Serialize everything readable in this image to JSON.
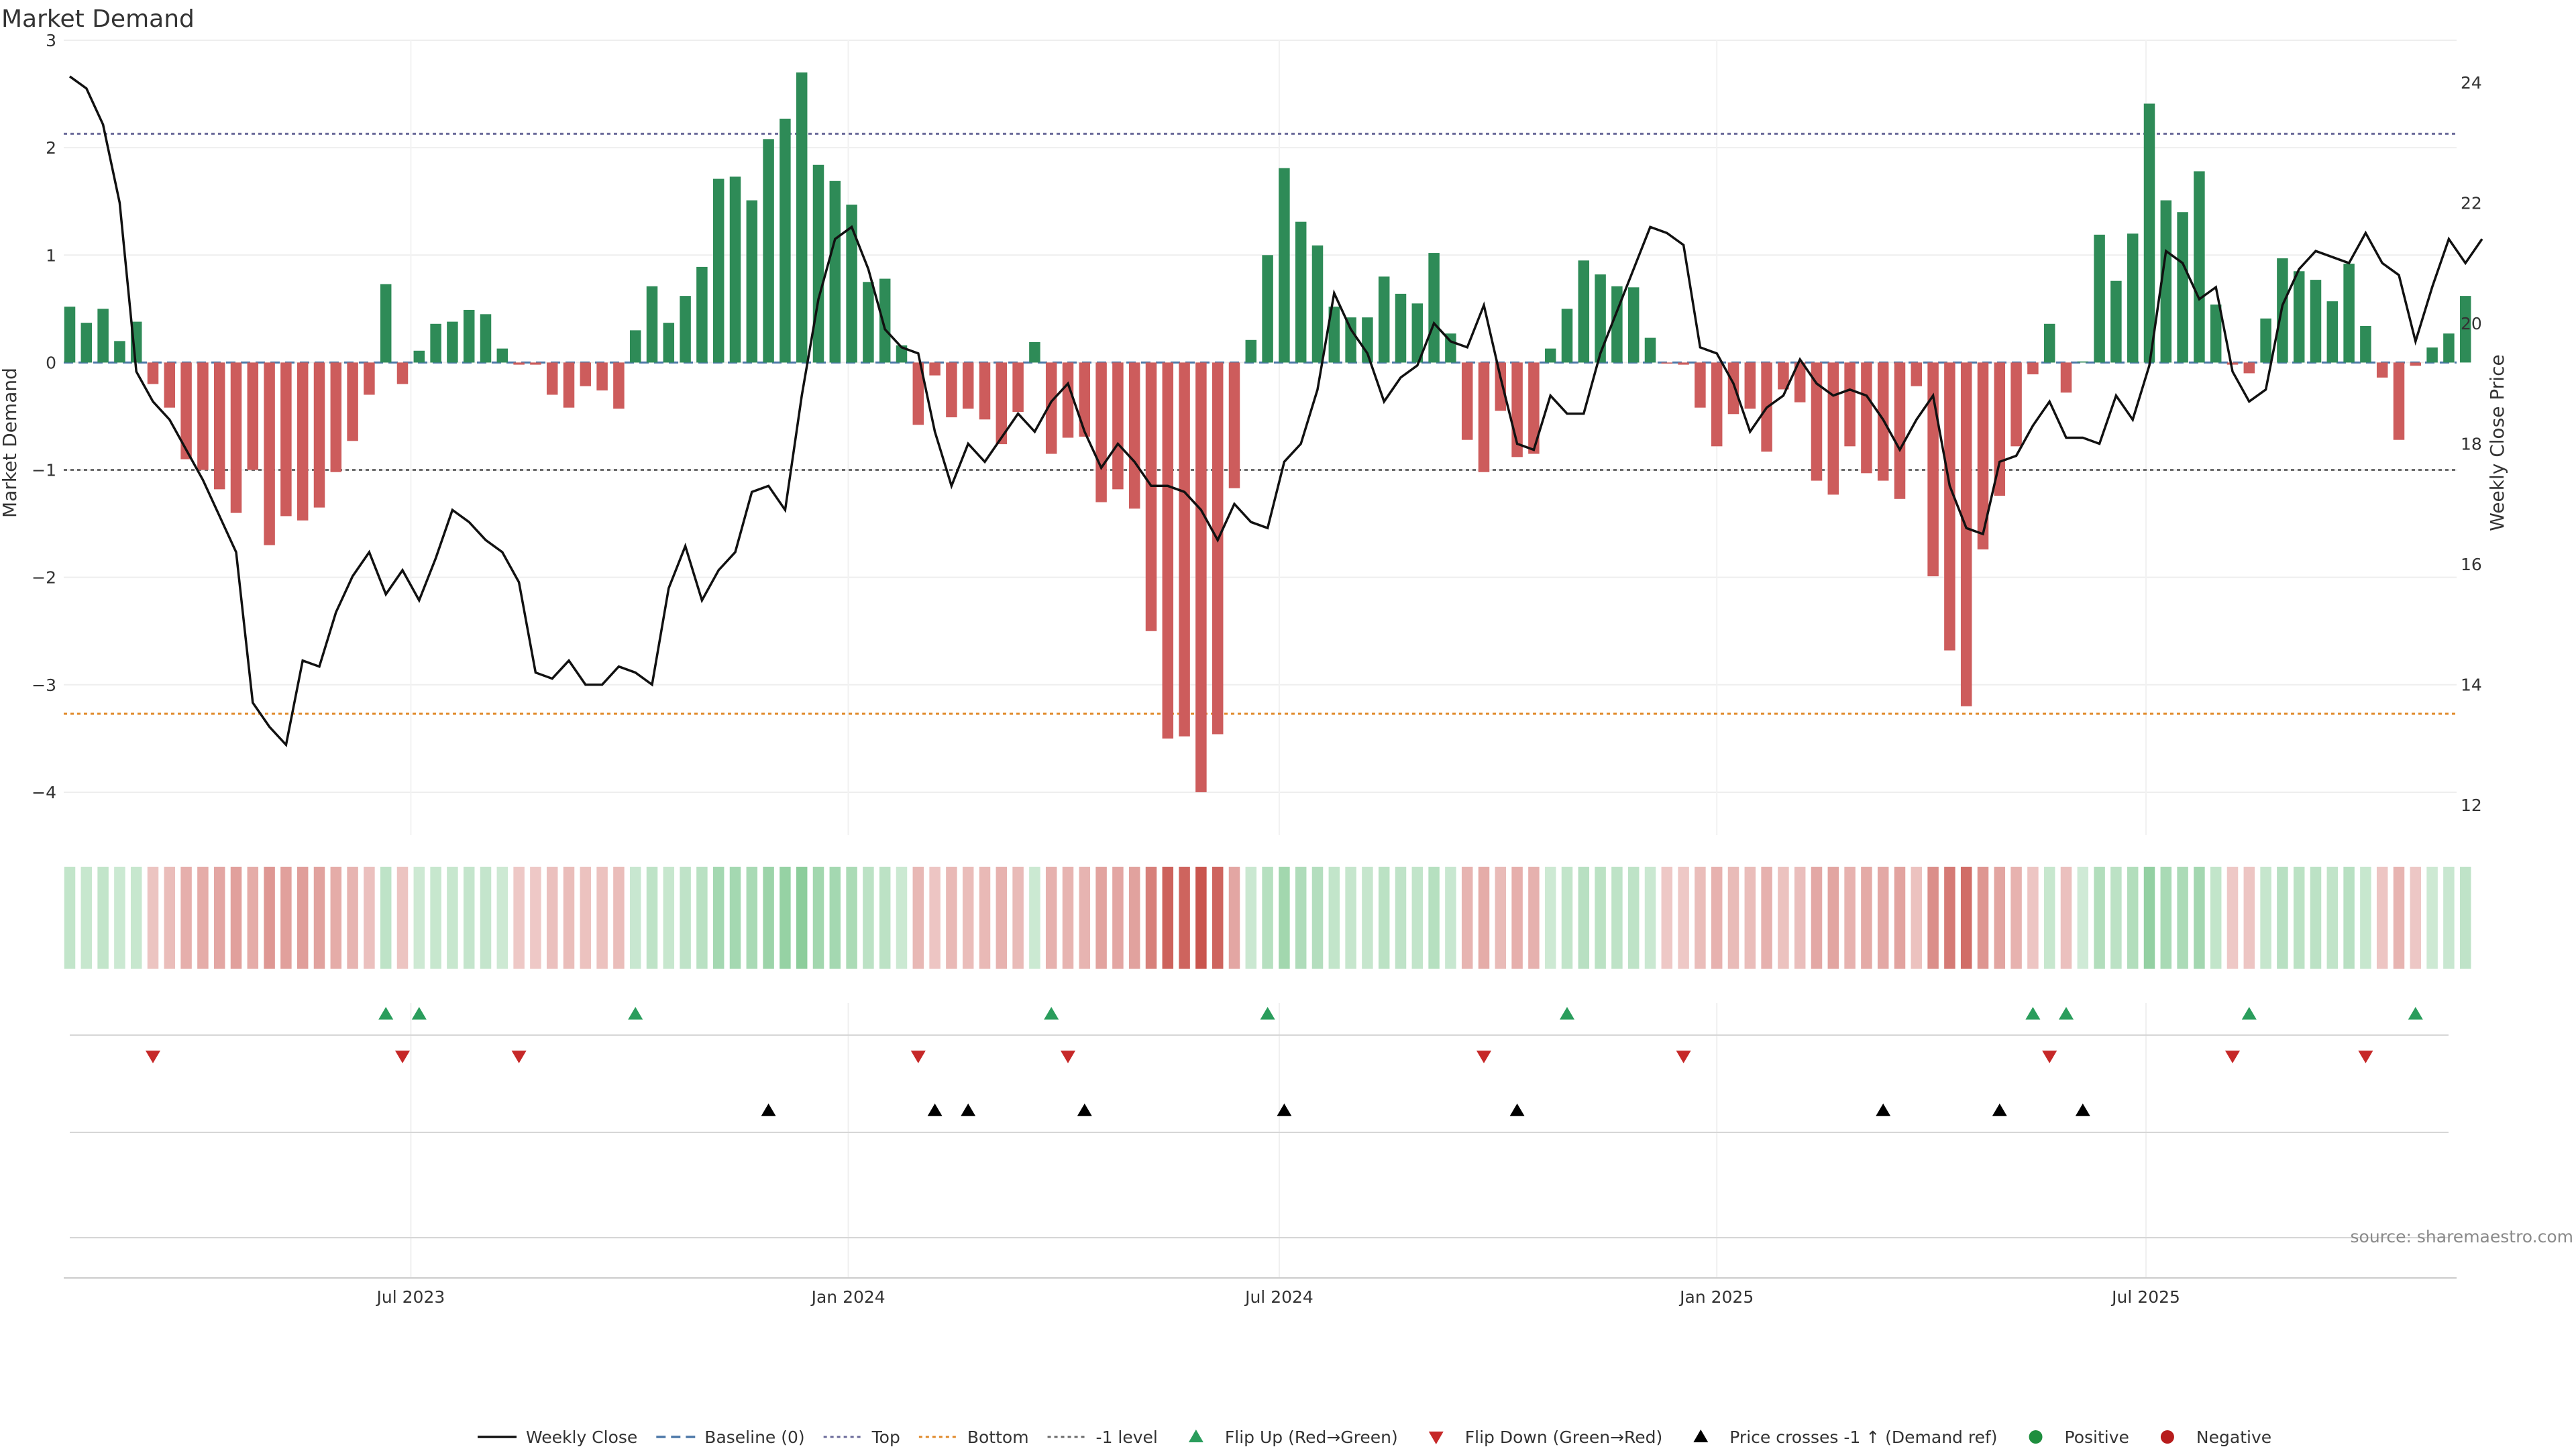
{
  "chart_data": {
    "type": "bar",
    "title": "Market Demand",
    "ylabel": "Market Demand",
    "y2label": "Weekly Close Price",
    "ylim": [
      -4.4,
      3.0
    ],
    "y2lim": [
      11.5,
      24.7
    ],
    "yticks": [
      3,
      2,
      1,
      0,
      -1,
      -2,
      -3,
      -4
    ],
    "y2ticks": [
      24,
      22,
      20,
      18,
      16,
      14,
      12
    ],
    "xticks": [
      {
        "label": "Jul 2023",
        "index": 20.5
      },
      {
        "label": "Jan 2024",
        "index": 46.8
      },
      {
        "label": "Jan 2024 grid",
        "index": 46.8,
        "hidden": true
      },
      {
        "label": "Jul 2024",
        "index": 72.7
      },
      {
        "label": "Jan 2025",
        "index": 99.0
      },
      {
        "label": "Jul 2025",
        "index": 124.8
      }
    ],
    "reference_lines": {
      "top": 2.13,
      "bottom": -3.27,
      "minus_one": -1.0,
      "baseline": 0
    },
    "demand": [
      0.52,
      0.37,
      0.5,
      0.2,
      0.38,
      -0.2,
      -0.42,
      -0.9,
      -1.0,
      -1.18,
      -1.4,
      -1.0,
      -1.7,
      -1.43,
      -1.47,
      -1.35,
      -1.02,
      -0.73,
      -0.3,
      0.73,
      -0.2,
      0.11,
      0.36,
      0.38,
      0.49,
      0.45,
      0.13,
      -0.02,
      -0.02,
      -0.3,
      -0.42,
      -0.22,
      -0.26,
      -0.43,
      0.3,
      0.71,
      0.37,
      0.62,
      0.89,
      1.71,
      1.73,
      1.51,
      2.08,
      2.27,
      2.7,
      1.84,
      1.69,
      1.47,
      0.75,
      0.78,
      0.16,
      -0.58,
      -0.12,
      -0.51,
      -0.43,
      -0.53,
      -0.76,
      -0.46,
      0.19,
      -0.85,
      -0.7,
      -0.69,
      -1.3,
      -1.18,
      -1.36,
      -2.5,
      -3.5,
      -3.48,
      -4.0,
      -3.46,
      -1.17,
      0.21,
      1.0,
      1.81,
      1.31,
      1.09,
      0.52,
      0.42,
      0.42,
      0.8,
      0.64,
      0.55,
      1.02,
      0.27,
      -0.72,
      -1.02,
      -0.45,
      -0.88,
      -0.85,
      0.13,
      0.5,
      0.95,
      0.82,
      0.71,
      0.7,
      0.23,
      -0.01,
      -0.02,
      -0.42,
      -0.78,
      -0.48,
      -0.43,
      -0.83,
      -0.25,
      -0.37,
      -1.1,
      -1.23,
      -0.78,
      -1.03,
      -1.1,
      -1.27,
      -0.22,
      -1.99,
      -2.68,
      -3.2,
      -1.74,
      -1.24,
      -0.78,
      -0.11,
      0.36,
      -0.28,
      0.01,
      1.19,
      0.76,
      1.2,
      2.41,
      1.51,
      1.4,
      1.78,
      0.54,
      -0.02,
      -0.1,
      0.41,
      0.97,
      0.85,
      0.77,
      0.57,
      0.92,
      0.34,
      -0.14,
      -0.72,
      -0.03,
      0.14,
      0.27,
      0.62
    ],
    "close": [
      24.1,
      23.9,
      23.3,
      22.0,
      19.2,
      18.7,
      18.4,
      17.9,
      17.4,
      16.8,
      16.2,
      13.7,
      13.3,
      13.0,
      14.4,
      14.3,
      15.2,
      15.8,
      16.2,
      15.5,
      15.9,
      15.4,
      16.1,
      16.9,
      16.7,
      16.4,
      16.2,
      15.7,
      14.2,
      14.1,
      14.4,
      14.0,
      14.0,
      14.3,
      14.2,
      14.0,
      15.6,
      16.3,
      15.4,
      15.9,
      16.2,
      17.2,
      17.3,
      16.9,
      18.8,
      20.4,
      21.4,
      21.6,
      20.9,
      19.9,
      19.6,
      19.5,
      18.2,
      17.3,
      18.0,
      17.7,
      18.1,
      18.5,
      18.2,
      18.7,
      19.0,
      18.2,
      17.6,
      18.0,
      17.7,
      17.3,
      17.3,
      17.2,
      16.9,
      16.4,
      17.0,
      16.7,
      16.6,
      17.7,
      18.0,
      18.9,
      20.5,
      19.9,
      19.5,
      18.7,
      19.1,
      19.3,
      20.0,
      19.7,
      19.6,
      20.3,
      19.1,
      18.0,
      17.9,
      18.8,
      18.5,
      18.5,
      19.5,
      20.2,
      20.9,
      21.6,
      21.5,
      21.3,
      19.6,
      19.5,
      19.0,
      18.2,
      18.6,
      18.8,
      19.4,
      19.0,
      18.8,
      18.9,
      18.8,
      18.4,
      17.9,
      18.4,
      18.8,
      17.3,
      16.6,
      16.5,
      17.7,
      17.8,
      18.3,
      18.7,
      18.1,
      18.1,
      18.0,
      18.8,
      18.4,
      19.3,
      21.2,
      21.0,
      20.4,
      20.6,
      19.2,
      18.7,
      18.9,
      20.3,
      20.9,
      21.2,
      21.1,
      21.0,
      21.5,
      21.0,
      20.8,
      19.7,
      20.6,
      21.4,
      21.0,
      21.4
    ],
    "flip_up": [
      19,
      21,
      34,
      59,
      72,
      90,
      118,
      120,
      131,
      141
    ],
    "flip_down": [
      5,
      20,
      27,
      51,
      60,
      85,
      97,
      119,
      130,
      138
    ],
    "price_cross": [
      42,
      52,
      54,
      61,
      73,
      87,
      109,
      116,
      121
    ],
    "legend": [
      {
        "label": "Weekly Close",
        "kind": "line",
        "color": "#111111"
      },
      {
        "label": "Baseline (0)",
        "kind": "dash",
        "color": "#4c78a8"
      },
      {
        "label": "Top",
        "kind": "dot",
        "color": "#6b6b9a"
      },
      {
        "label": "Bottom",
        "kind": "dot",
        "color": "#e08a2a"
      },
      {
        "label": "-1 level",
        "kind": "dot",
        "color": "#6b6b6b"
      },
      {
        "label": "Flip Up (Red→Green)",
        "kind": "tri-up",
        "color": "#2a9d5c"
      },
      {
        "label": "Flip Down (Green→Red)",
        "kind": "tri-down",
        "color": "#c62828"
      },
      {
        "label": "Price crosses -1 ↑ (Demand ref)",
        "kind": "tri-up",
        "color": "#000000"
      },
      {
        "label": "Positive",
        "kind": "dot-marker",
        "color": "#1e8e3e"
      },
      {
        "label": "Negative",
        "kind": "dot-marker",
        "color": "#b71c1c"
      }
    ],
    "source": "source: sharemaestro.com"
  },
  "colors": {
    "positive": "#2e8b57",
    "negative": "#cd5c5c",
    "heat_pos": "#6bbf7f",
    "heat_neg": "#c9554e"
  }
}
